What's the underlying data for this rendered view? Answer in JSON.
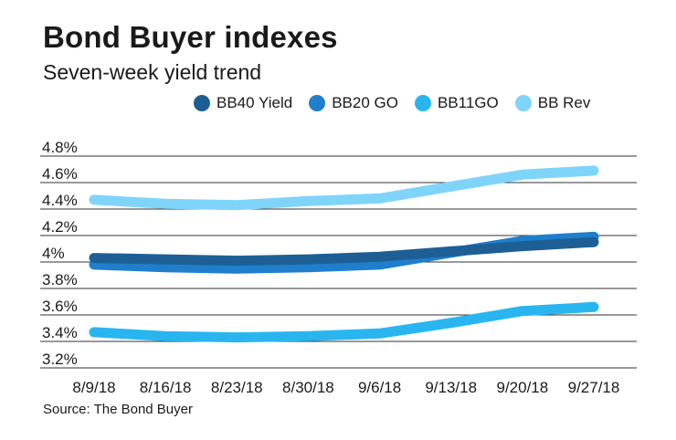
{
  "header": {
    "title": "Bond Buyer indexes",
    "subtitle": "Seven-week yield trend"
  },
  "footer": {
    "source": "Source: The Bond Buyer"
  },
  "chart_data": {
    "type": "line",
    "title": "Bond Buyer indexes",
    "subtitle": "Seven-week yield trend",
    "xlabel": "",
    "ylabel": "",
    "x": [
      "8/9/18",
      "8/16/18",
      "8/23/18",
      "8/30/18",
      "9/6/18",
      "9/13/18",
      "9/20/18",
      "9/27/18"
    ],
    "y_ticks": [
      "4.8%",
      "4.6%",
      "4.4%",
      "4.2%",
      "4%",
      "3.8%",
      "3.6%",
      "3.4%",
      "3.2%"
    ],
    "ylim": [
      3.2,
      4.8
    ],
    "grid": true,
    "legend_position": "top",
    "series": [
      {
        "name": "BB40 Yield",
        "color": "#1d5f94",
        "values": [
          4.03,
          4.02,
          4.01,
          4.02,
          4.04,
          4.08,
          4.12,
          4.15
        ]
      },
      {
        "name": "BB20 GO",
        "color": "#1f7fcc",
        "values": [
          3.98,
          3.96,
          3.95,
          3.96,
          3.98,
          4.07,
          4.16,
          4.19
        ]
      },
      {
        "name": "BB11GO",
        "color": "#29b6f0",
        "values": [
          3.47,
          3.44,
          3.43,
          3.44,
          3.46,
          3.54,
          3.63,
          3.66
        ]
      },
      {
        "name": "BB Rev",
        "color": "#7fd4fa",
        "values": [
          4.47,
          4.44,
          4.43,
          4.46,
          4.48,
          4.57,
          4.66,
          4.69
        ]
      }
    ],
    "source": "Source: The Bond Buyer"
  }
}
